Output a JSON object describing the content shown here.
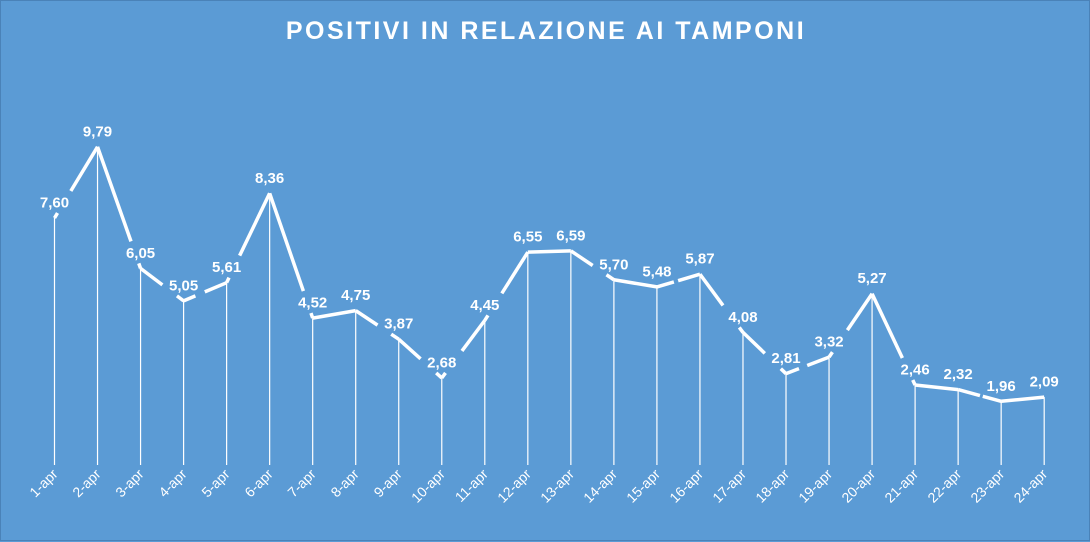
{
  "chart_data": {
    "type": "line",
    "title": "POSITIVI IN RELAZIONE AI TAMPONI",
    "categories": [
      "1-apr",
      "2-apr",
      "3-apr",
      "4-apr",
      "5-apr",
      "6-apr",
      "7-apr",
      "8-apr",
      "9-apr",
      "10-apr",
      "11-apr",
      "12-apr",
      "13-apr",
      "14-apr",
      "15-apr",
      "16-apr",
      "17-apr",
      "18-apr",
      "19-apr",
      "20-apr",
      "21-apr",
      "22-apr",
      "23-apr",
      "24-apr"
    ],
    "values": [
      7.6,
      9.79,
      6.05,
      5.05,
      5.61,
      8.36,
      4.52,
      4.75,
      3.87,
      2.68,
      4.45,
      6.55,
      6.59,
      5.7,
      5.48,
      5.87,
      4.08,
      2.81,
      3.32,
      5.27,
      2.46,
      2.32,
      1.96,
      2.09
    ],
    "value_labels": [
      "7,60",
      "9,79",
      "6,05",
      "5,05",
      "5,61",
      "8,36",
      "4,52",
      "4,75",
      "3,87",
      "2,68",
      "4,45",
      "6,55",
      "6,59",
      "5,70",
      "5,48",
      "5,87",
      "4,08",
      "2,81",
      "3,32",
      "5,27",
      "2,46",
      "2,32",
      "1,96",
      "2,09"
    ],
    "ylim": [
      0,
      10
    ],
    "grid": false,
    "drop_lines": true,
    "legend": "none",
    "background_color": "#5b9bd5",
    "line_color": "#ffffff"
  }
}
